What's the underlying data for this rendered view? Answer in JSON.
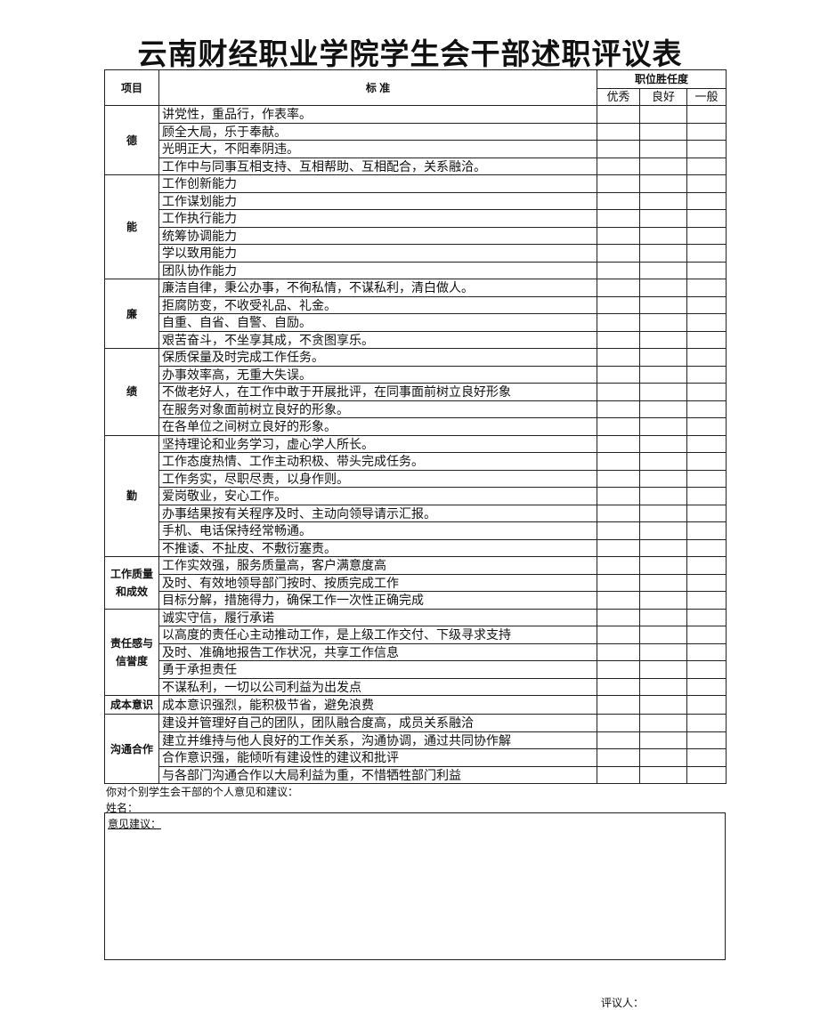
{
  "header": {
    "title": "云南财经职业学院学生会干部述职评议表"
  },
  "table": {
    "col_item": "项目",
    "col_standard": "标 准",
    "col_fitness": "职位胜任度",
    "ratings": [
      "优秀",
      "良好",
      "一般"
    ],
    "sections": [
      {
        "label": "德",
        "items": [
          "讲党性，重品行，作表率。",
          "顾全大局，乐于奉献。",
          "光明正大，不阳奉阴违。",
          "工作中与同事互相支持、互相帮助、互相配合，关系融洽。"
        ]
      },
      {
        "label": "能",
        "items": [
          "工作创新能力",
          "工作谋划能力",
          "工作执行能力",
          "统筹协调能力",
          "学以致用能力",
          "团队协作能力"
        ]
      },
      {
        "label": "廉",
        "items": [
          "廉洁自律，秉公办事，不徇私情，不谋私利，清白做人。",
          "拒腐防变，不收受礼品、礼金。",
          "自重、自省、自警、自励。",
          "艰苦奋斗，不坐享其成，不贪图享乐。"
        ]
      },
      {
        "label": "绩",
        "items": [
          "保质保量及时完成工作任务。",
          "办事效率高，无重大失误。",
          "不做老好人，在工作中敢于开展批评，在同事面前树立良好形象",
          "在服务对象面前树立良好的形象。",
          "在各单位之间树立良好的形象。"
        ]
      },
      {
        "label": "勤",
        "items": [
          "坚持理论和业务学习，虚心学人所长。",
          "工作态度热情、工作主动积极、带头完成任务。",
          "工作务实，尽职尽责，以身作则。",
          "爱岗敬业，安心工作。",
          "办事结果按有关程序及时、主动向领导请示汇报。",
          "手机、电话保持经常畅通。",
          "不推诿、不扯皮、不敷衍塞责。"
        ]
      },
      {
        "label": "工作质量和成效",
        "items": [
          "工作实效强，服务质量高，客户满意度高",
          "及时、有效地领导部门按时、按质完成工作",
          "目标分解，措施得力，确保工作一次性正确完成"
        ]
      },
      {
        "label": "责任感与信誉度",
        "items": [
          "诚实守信，履行承诺",
          "以高度的责任心主动推动工作，是上级工作交付、下级寻求支持",
          "及时、准确地报告工作状况，共享工作信息",
          "勇于承担责任",
          "不谋私利，一切以公司利益为出发点"
        ]
      },
      {
        "label": "成本意识",
        "items": [
          "成本意识强烈，能积极节省，避免浪费"
        ]
      },
      {
        "label": "沟通合作",
        "items": [
          "建设并管理好自己的团队，团队融合度高，成员关系融洽",
          "建立并维持与他人良好的工作关系，沟通协调，通过共同协作解",
          "合作意识强，能倾听有建设性的建议和批评",
          "与各部门沟通合作以大局利益为重，不惜牺牲部门利益"
        ]
      }
    ]
  },
  "footer": {
    "prompt": "你对个别学生会干部的个人意见和建议：",
    "name": "姓名：",
    "suggestion": "意见建议：",
    "reviewer": "评议人："
  }
}
